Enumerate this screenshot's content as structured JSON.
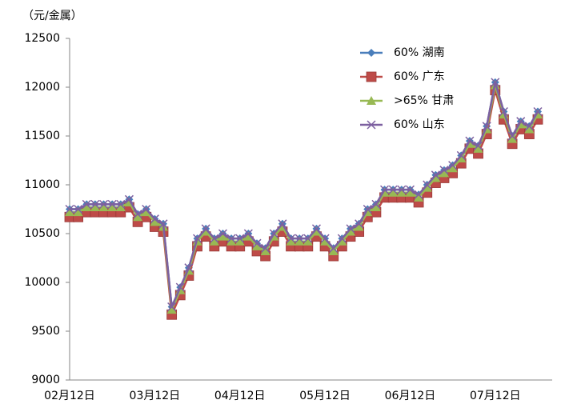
{
  "chart_data": {
    "type": "line",
    "y_label": "（元/金属）",
    "categories": [
      "02月12日",
      null,
      null,
      null,
      null,
      null,
      null,
      null,
      null,
      null,
      "03月12日",
      null,
      null,
      null,
      null,
      null,
      null,
      null,
      null,
      null,
      "04月12日",
      null,
      null,
      null,
      null,
      null,
      null,
      null,
      null,
      null,
      "05月12日",
      null,
      null,
      null,
      null,
      null,
      null,
      null,
      null,
      null,
      "06月12日",
      null,
      null,
      null,
      null,
      null,
      null,
      null,
      null,
      null,
      "07月12日",
      null,
      null,
      null,
      null,
      null
    ],
    "ylim": [
      9000,
      12500
    ],
    "yticks": [
      9000,
      9500,
      10000,
      10500,
      11000,
      11500,
      12000,
      12500
    ],
    "series": [
      {
        "name": "60% 湖南",
        "color": "#4a7ebb",
        "marker": "diamond",
        "values": [
          10750,
          10750,
          10800,
          10800,
          10800,
          10800,
          10800,
          10850,
          10700,
          10750,
          10650,
          10600,
          9750,
          9950,
          10150,
          10450,
          10550,
          10450,
          10500,
          10450,
          10450,
          10500,
          10400,
          10350,
          10500,
          10600,
          10450,
          10450,
          10450,
          10550,
          10450,
          10350,
          10450,
          10550,
          10600,
          10750,
          10800,
          10950,
          10950,
          10950,
          10950,
          10900,
          11000,
          11100,
          11150,
          11200,
          11300,
          11450,
          11400,
          11600,
          12050,
          11750,
          11500,
          11650,
          11600,
          11750
        ]
      },
      {
        "name": "60% 广东",
        "color": "#be4b48",
        "marker": "square",
        "values": [
          10670,
          10670,
          10720,
          10720,
          10720,
          10720,
          10720,
          10770,
          10620,
          10670,
          10570,
          10520,
          9670,
          9870,
          10070,
          10370,
          10470,
          10370,
          10420,
          10370,
          10370,
          10420,
          10320,
          10270,
          10420,
          10520,
          10370,
          10370,
          10370,
          10470,
          10370,
          10270,
          10370,
          10470,
          10520,
          10670,
          10720,
          10870,
          10870,
          10870,
          10870,
          10820,
          10920,
          11020,
          11070,
          11120,
          11220,
          11370,
          11320,
          11520,
          11970,
          11670,
          11420,
          11570,
          11520,
          11670
        ]
      },
      {
        "name": ">65% 甘肃",
        "color": "#98b954",
        "marker": "triangle",
        "values": [
          10720,
          10720,
          10770,
          10770,
          10770,
          10770,
          10770,
          10820,
          10670,
          10720,
          10620,
          10570,
          9720,
          9920,
          10120,
          10420,
          10520,
          10420,
          10470,
          10420,
          10420,
          10470,
          10370,
          10320,
          10470,
          10570,
          10420,
          10420,
          10420,
          10520,
          10420,
          10320,
          10420,
          10520,
          10570,
          10720,
          10770,
          10920,
          10920,
          10920,
          10920,
          10870,
          10970,
          11070,
          11120,
          11170,
          11270,
          11420,
          11370,
          11570,
          12020,
          11720,
          11470,
          11620,
          11570,
          11720
        ]
      },
      {
        "name": "60% 山东",
        "color": "#7d60a0",
        "marker": "x",
        "values": [
          10750,
          10750,
          10800,
          10800,
          10800,
          10800,
          10800,
          10850,
          10700,
          10750,
          10650,
          10600,
          9750,
          9950,
          10150,
          10450,
          10550,
          10450,
          10500,
          10450,
          10450,
          10500,
          10400,
          10350,
          10500,
          10600,
          10450,
          10450,
          10450,
          10550,
          10450,
          10350,
          10450,
          10550,
          10600,
          10750,
          10800,
          10950,
          10950,
          10950,
          10950,
          10900,
          11000,
          11100,
          11150,
          11200,
          11300,
          11450,
          11400,
          11600,
          12050,
          11750,
          11500,
          11650,
          11600,
          11750
        ]
      }
    ]
  }
}
